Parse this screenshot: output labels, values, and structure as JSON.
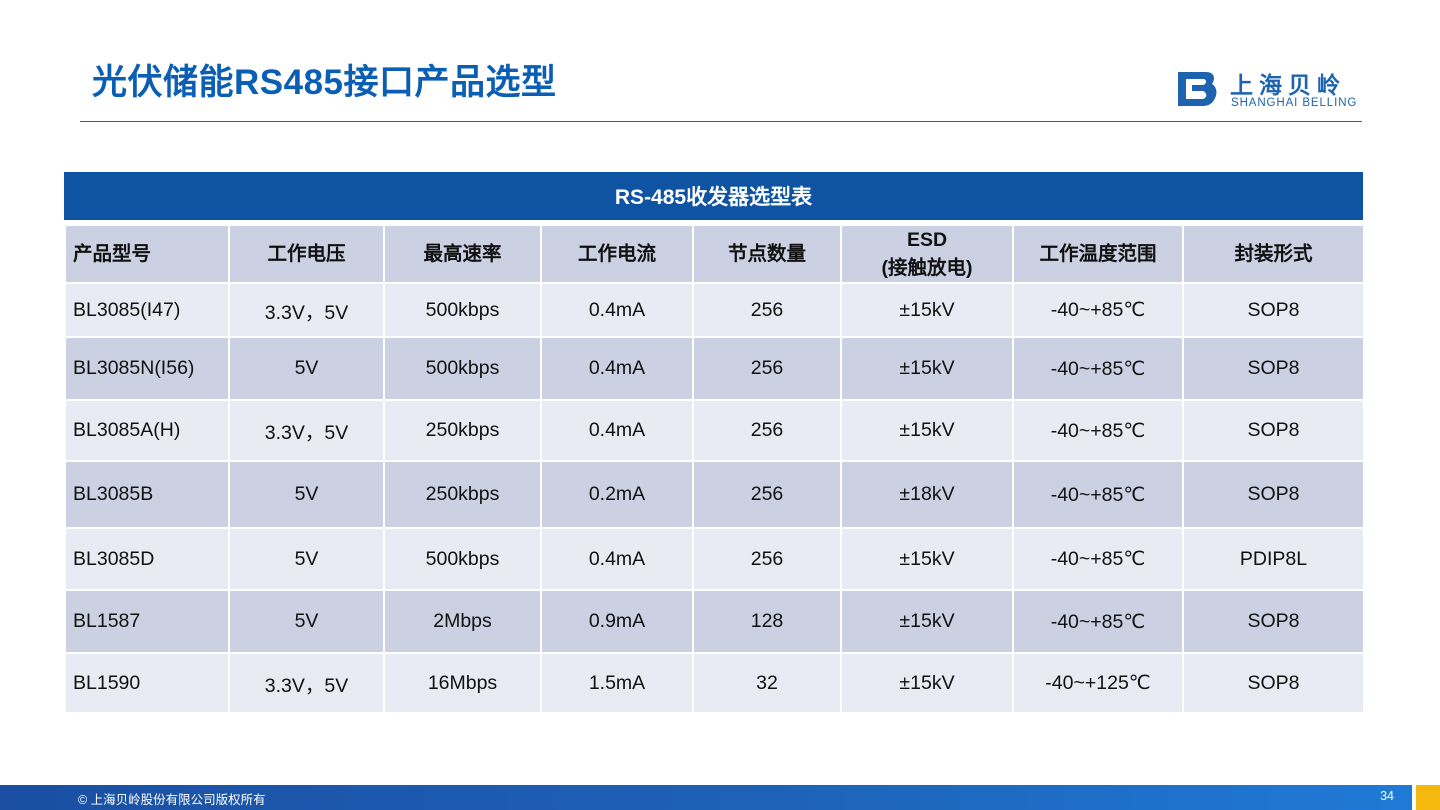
{
  "header": {
    "title": "光伏储能RS485接口产品选型",
    "logo_cn": "上海贝岭",
    "logo_en": "SHANGHAI BELLING"
  },
  "table": {
    "banner": "RS-485收发器选型表",
    "columns": [
      "产品型号",
      "工作电压",
      "最高速率",
      "工作电流",
      "节点数量",
      "ESD",
      "工作温度范围",
      "封装形式"
    ],
    "esd_sub": "(接触放电)",
    "rows": [
      [
        "BL3085(I47)",
        "3.3V，5V",
        "500kbps",
        "0.4mA",
        "256",
        "±15kV",
        "-40~+85℃",
        "SOP8"
      ],
      [
        "BL3085N(I56)",
        "5V",
        "500kbps",
        "0.4mA",
        "256",
        "±15kV",
        "-40~+85℃",
        "SOP8"
      ],
      [
        "BL3085A(H)",
        "3.3V，5V",
        "250kbps",
        "0.4mA",
        "256",
        "±15kV",
        "-40~+85℃",
        "SOP8"
      ],
      [
        "BL3085B",
        "5V",
        "250kbps",
        "0.2mA",
        "256",
        "±18kV",
        "-40~+85℃",
        "SOP8"
      ],
      [
        "BL3085D",
        "5V",
        "500kbps",
        "0.4mA",
        "256",
        "±15kV",
        "-40~+85℃",
        "PDIP8L"
      ],
      [
        "BL1587",
        "5V",
        "2Mbps",
        "0.9mA",
        "128",
        "±15kV",
        "-40~+85℃",
        "SOP8"
      ],
      [
        "BL1590",
        "3.3V，5V",
        "16Mbps",
        "1.5mA",
        "32",
        "±15kV",
        "-40~+125℃",
        "SOP8"
      ]
    ]
  },
  "footer": {
    "copyright": "© 上海贝岭股份有限公司版权所有",
    "page_number": "34"
  },
  "colors": {
    "title": "#0a5fb4",
    "banner": "#0f54a2",
    "row_dark": "#cbd1e2",
    "row_light": "#e8ebf3",
    "footer_accent": "#f5b80f"
  }
}
